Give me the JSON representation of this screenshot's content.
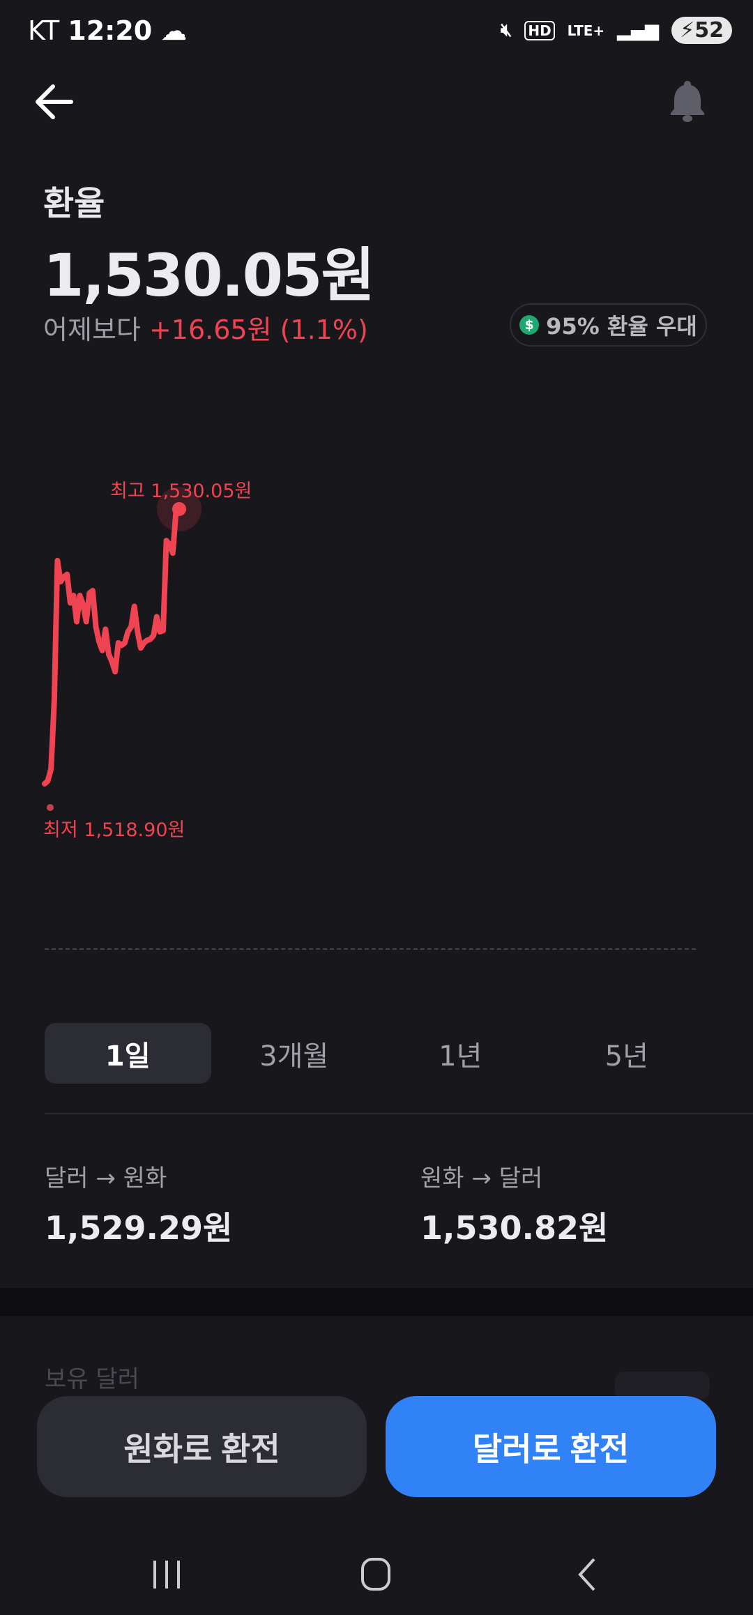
{
  "status_bar": {
    "carrier": "KT",
    "time": "12:20",
    "network": "LTE+",
    "hd": "HD",
    "battery": "52"
  },
  "header": {
    "back_icon": "arrow-left-icon",
    "bell_icon": "bell-icon"
  },
  "summary": {
    "title": "환율",
    "price": "1,530.05원",
    "change_prefix": "어제보다",
    "change": "+16.65원 (1.1%)",
    "badge": "95% 환율 우대",
    "badge_icon": "dollar-icon",
    "badge_icon_glyph": "$"
  },
  "colors": {
    "up": "#f04452",
    "accent": "#3182f6",
    "background": "#17171c"
  },
  "chart_data": {
    "type": "line",
    "high_label": "최고 1,530.05원",
    "low_label": "최저 1,518.90원",
    "high": 1530.05,
    "low": 1518.9,
    "values": [
      1518.9,
      1519.02,
      1519.51,
      1522.24,
      1527.96,
      1527.1,
      1527.3,
      1527.4,
      1526.24,
      1526.54,
      1525.48,
      1526.54,
      1526.18,
      1525.48,
      1526.64,
      1526.74,
      1525.27,
      1524.67,
      1524.31,
      1525.17,
      1524.16,
      1523.86,
      1523.45,
      1524.62,
      1524.52,
      1524.62,
      1525.07,
      1525.27,
      1526.1,
      1525.07,
      1524.41,
      1524.62,
      1524.72,
      1524.77,
      1524.92,
      1525.68,
      1525.07,
      1525.12,
      1528.77,
      1528.61,
      1528.26,
      1529.93,
      1530.05
    ],
    "grid": false
  },
  "periods": [
    {
      "label": "1일",
      "active": true
    },
    {
      "label": "3개월"
    },
    {
      "label": "1년"
    },
    {
      "label": "5년"
    }
  ],
  "rates": [
    {
      "label": "달러 → 원화",
      "value": "1,529.29원"
    },
    {
      "label": "원화 → 달러",
      "value": "1,530.82원"
    }
  ],
  "holdings": {
    "label": "보유 달러"
  },
  "actions": {
    "to_krw": "원화로 환전",
    "to_usd": "달러로 환전"
  },
  "nav": {
    "recent": "recent-apps-icon",
    "home": "home-icon",
    "back": "back-icon"
  }
}
